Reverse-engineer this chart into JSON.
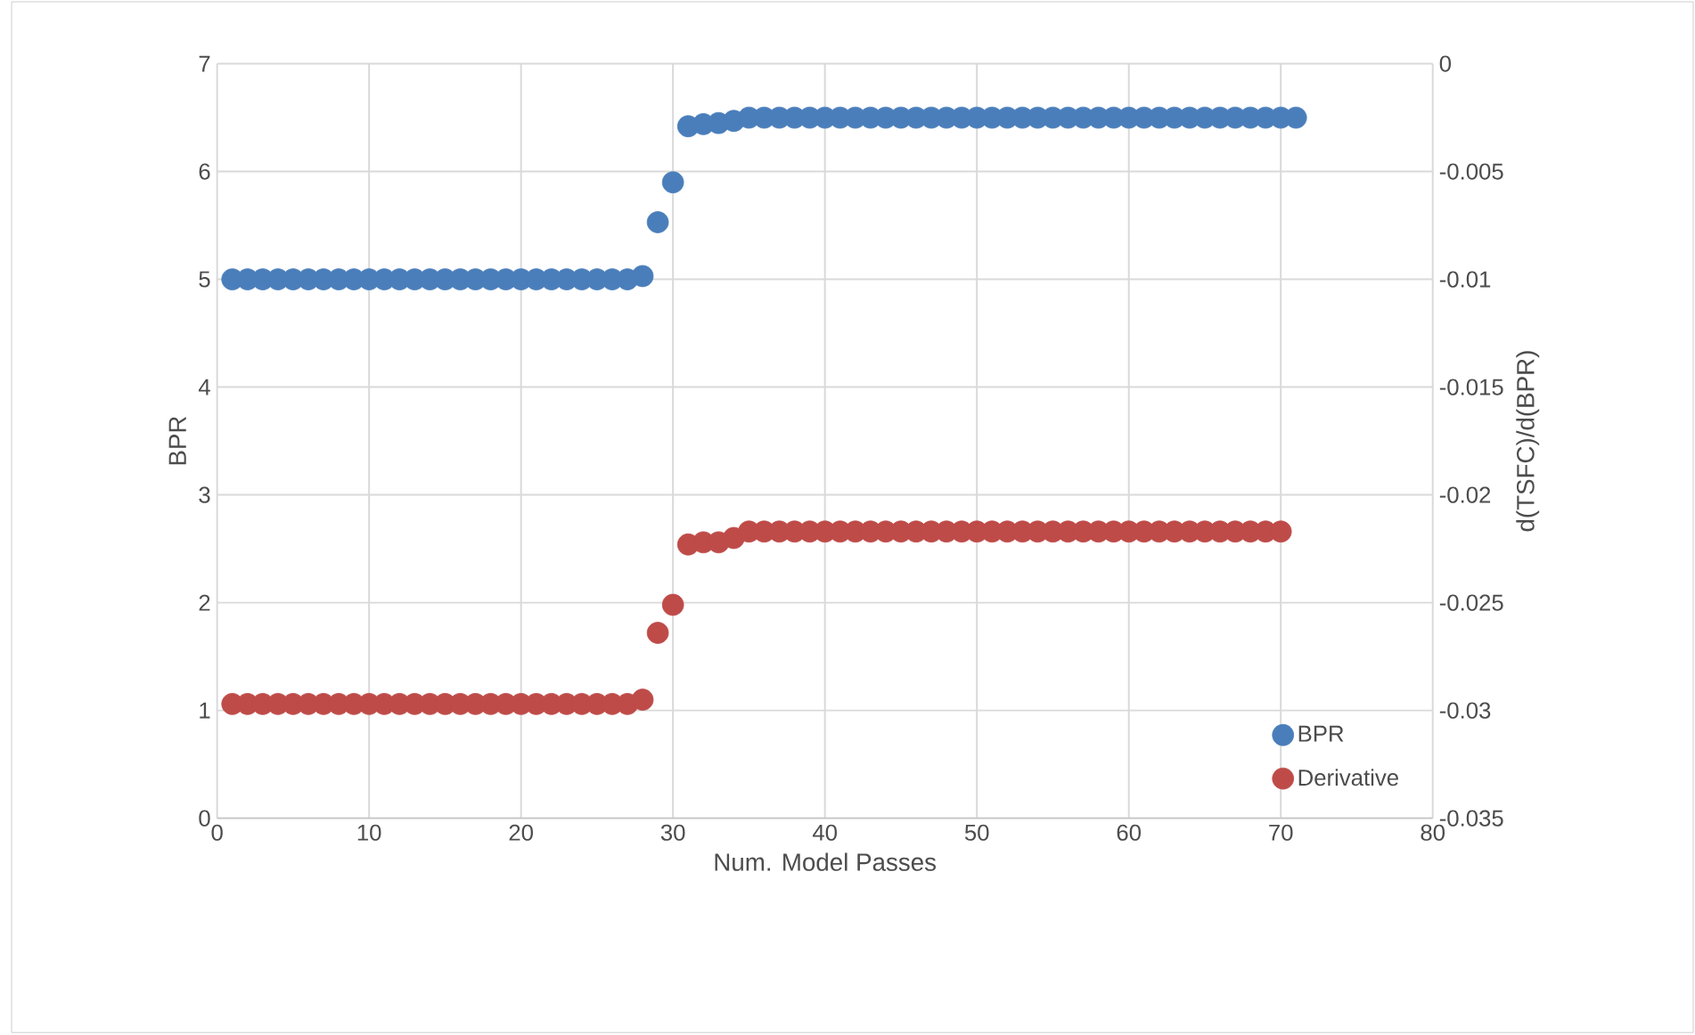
{
  "chart_data": {
    "type": "scatter",
    "xlabel": "Num. Model Passes",
    "ylabel": "BPR",
    "y2label": "d(TSFC)/d(BPR)",
    "xlim": [
      0,
      80
    ],
    "xticks": [
      0,
      10,
      20,
      30,
      40,
      50,
      60,
      70,
      80
    ],
    "ylim": [
      0,
      7
    ],
    "yticks": [
      0,
      1,
      2,
      3,
      4,
      5,
      6,
      7
    ],
    "y2lim": [
      -0.035,
      0
    ],
    "y2ticks": [
      -0.035,
      -0.03,
      -0.025,
      -0.02,
      -0.015,
      -0.01,
      -0.005,
      0
    ],
    "grid": true,
    "legend": "bottom right",
    "marker": "circle",
    "series": [
      {
        "name": "BPR",
        "color": "#4a7ebb",
        "x": [
          1,
          2,
          3,
          4,
          5,
          6,
          7,
          8,
          9,
          10,
          11,
          12,
          13,
          14,
          15,
          16,
          17,
          18,
          19,
          20,
          21,
          22,
          23,
          24,
          25,
          26,
          27,
          28,
          29,
          30,
          31,
          32,
          33,
          34,
          35,
          36,
          37,
          38,
          39,
          40,
          41,
          42,
          43,
          44,
          45,
          46,
          47,
          48,
          49,
          50,
          51,
          52,
          53,
          54,
          55,
          56,
          57,
          58,
          59,
          60,
          61,
          62,
          63,
          64,
          65,
          66,
          67,
          68,
          69,
          70,
          71
        ],
        "values": [
          5.0,
          5.0,
          5.0,
          5.0,
          5.0,
          5.0,
          5.0,
          5.0,
          5.0,
          5.0,
          5.0,
          5.0,
          5.0,
          5.0,
          5.0,
          5.0,
          5.0,
          5.0,
          5.0,
          5.0,
          5.0,
          5.0,
          5.0,
          5.0,
          5.0,
          5.0,
          5.0,
          5.03,
          5.53,
          5.9,
          6.42,
          6.44,
          6.45,
          6.47,
          6.5,
          6.5,
          6.5,
          6.5,
          6.5,
          6.5,
          6.5,
          6.5,
          6.5,
          6.5,
          6.5,
          6.5,
          6.5,
          6.5,
          6.5,
          6.5,
          6.5,
          6.5,
          6.5,
          6.5,
          6.5,
          6.5,
          6.5,
          6.5,
          6.5,
          6.5,
          6.5,
          6.5,
          6.5,
          6.5,
          6.5,
          6.5,
          6.5,
          6.5,
          6.5,
          6.5,
          6.5
        ]
      },
      {
        "name": "Derivative",
        "color": "#be4b48",
        "axis": "y2",
        "x": [
          1,
          2,
          3,
          4,
          5,
          6,
          7,
          8,
          9,
          10,
          11,
          12,
          13,
          14,
          15,
          16,
          17,
          18,
          19,
          20,
          21,
          22,
          23,
          24,
          25,
          26,
          27,
          28,
          29,
          30,
          31,
          32,
          33,
          34,
          35,
          36,
          37,
          38,
          39,
          40,
          41,
          42,
          43,
          44,
          45,
          46,
          47,
          48,
          49,
          50,
          51,
          52,
          53,
          54,
          55,
          56,
          57,
          58,
          59,
          60,
          61,
          62,
          63,
          64,
          65,
          66,
          67,
          68,
          69,
          70
        ],
        "values": [
          -0.0297,
          -0.0297,
          -0.0297,
          -0.0297,
          -0.0297,
          -0.0297,
          -0.0297,
          -0.0297,
          -0.0297,
          -0.0297,
          -0.0297,
          -0.0297,
          -0.0297,
          -0.0297,
          -0.0297,
          -0.0297,
          -0.0297,
          -0.0297,
          -0.0297,
          -0.0297,
          -0.0297,
          -0.0297,
          -0.0297,
          -0.0297,
          -0.0297,
          -0.0297,
          -0.0297,
          -0.0295,
          -0.0264,
          -0.0251,
          -0.0223,
          -0.0222,
          -0.0222,
          -0.022,
          -0.0217,
          -0.0217,
          -0.0217,
          -0.0217,
          -0.0217,
          -0.0217,
          -0.0217,
          -0.0217,
          -0.0217,
          -0.0217,
          -0.0217,
          -0.0217,
          -0.0217,
          -0.0217,
          -0.0217,
          -0.0217,
          -0.0217,
          -0.0217,
          -0.0217,
          -0.0217,
          -0.0217,
          -0.0217,
          -0.0217,
          -0.0217,
          -0.0217,
          -0.0217,
          -0.0217,
          -0.0217,
          -0.0217,
          -0.0217,
          -0.0217,
          -0.0217,
          -0.0217,
          -0.0217,
          -0.0217,
          -0.0217
        ]
      }
    ]
  }
}
